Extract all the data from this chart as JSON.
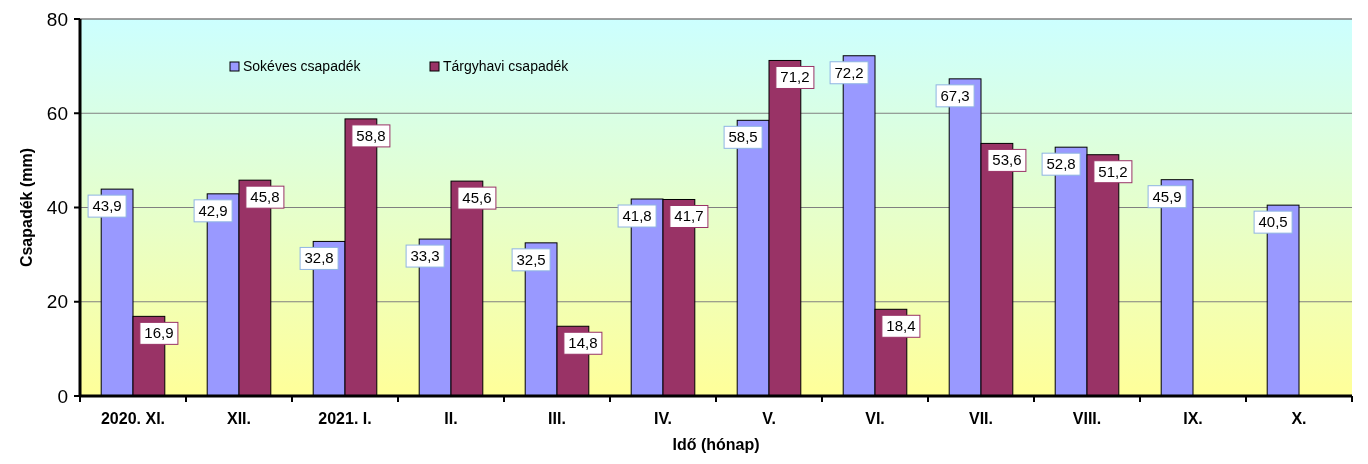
{
  "chart_data": {
    "type": "bar",
    "xlabel": "Idő (hónap)",
    "ylabel": "Csapadék (mm)",
    "categories": [
      "2020. XI.",
      "XII.",
      "2021. I.",
      "II.",
      "III.",
      "IV.",
      "V.",
      "VI.",
      "VII.",
      "VIII.",
      "IX.",
      "X."
    ],
    "series": [
      {
        "name": "Sokéves csapadék",
        "color": "#9999ff",
        "values": [
          43.9,
          42.9,
          32.8,
          33.3,
          32.5,
          41.8,
          58.5,
          72.2,
          67.3,
          52.8,
          45.9,
          40.5
        ],
        "value_labels": [
          "43,9",
          "42,9",
          "32,8",
          "33,3",
          "32,5",
          "41,8",
          "58,5",
          "72,2",
          "67,3",
          "52,8",
          "45,9",
          "40,5"
        ]
      },
      {
        "name": "Tárgyhavi csapadék",
        "color": "#993366",
        "values": [
          16.9,
          45.8,
          58.8,
          45.6,
          14.8,
          41.7,
          71.2,
          18.4,
          53.6,
          51.2,
          null,
          null
        ],
        "value_labels": [
          "16,9",
          "45,8",
          "58,8",
          "45,6",
          "14,8",
          "41,7",
          "71,2",
          "18,4",
          "53,6",
          "51,2",
          null,
          null
        ]
      }
    ],
    "ylim": [
      0,
      80
    ],
    "yticks": [
      0,
      20,
      40,
      60,
      80
    ],
    "grid": "y",
    "legend": "top left"
  }
}
